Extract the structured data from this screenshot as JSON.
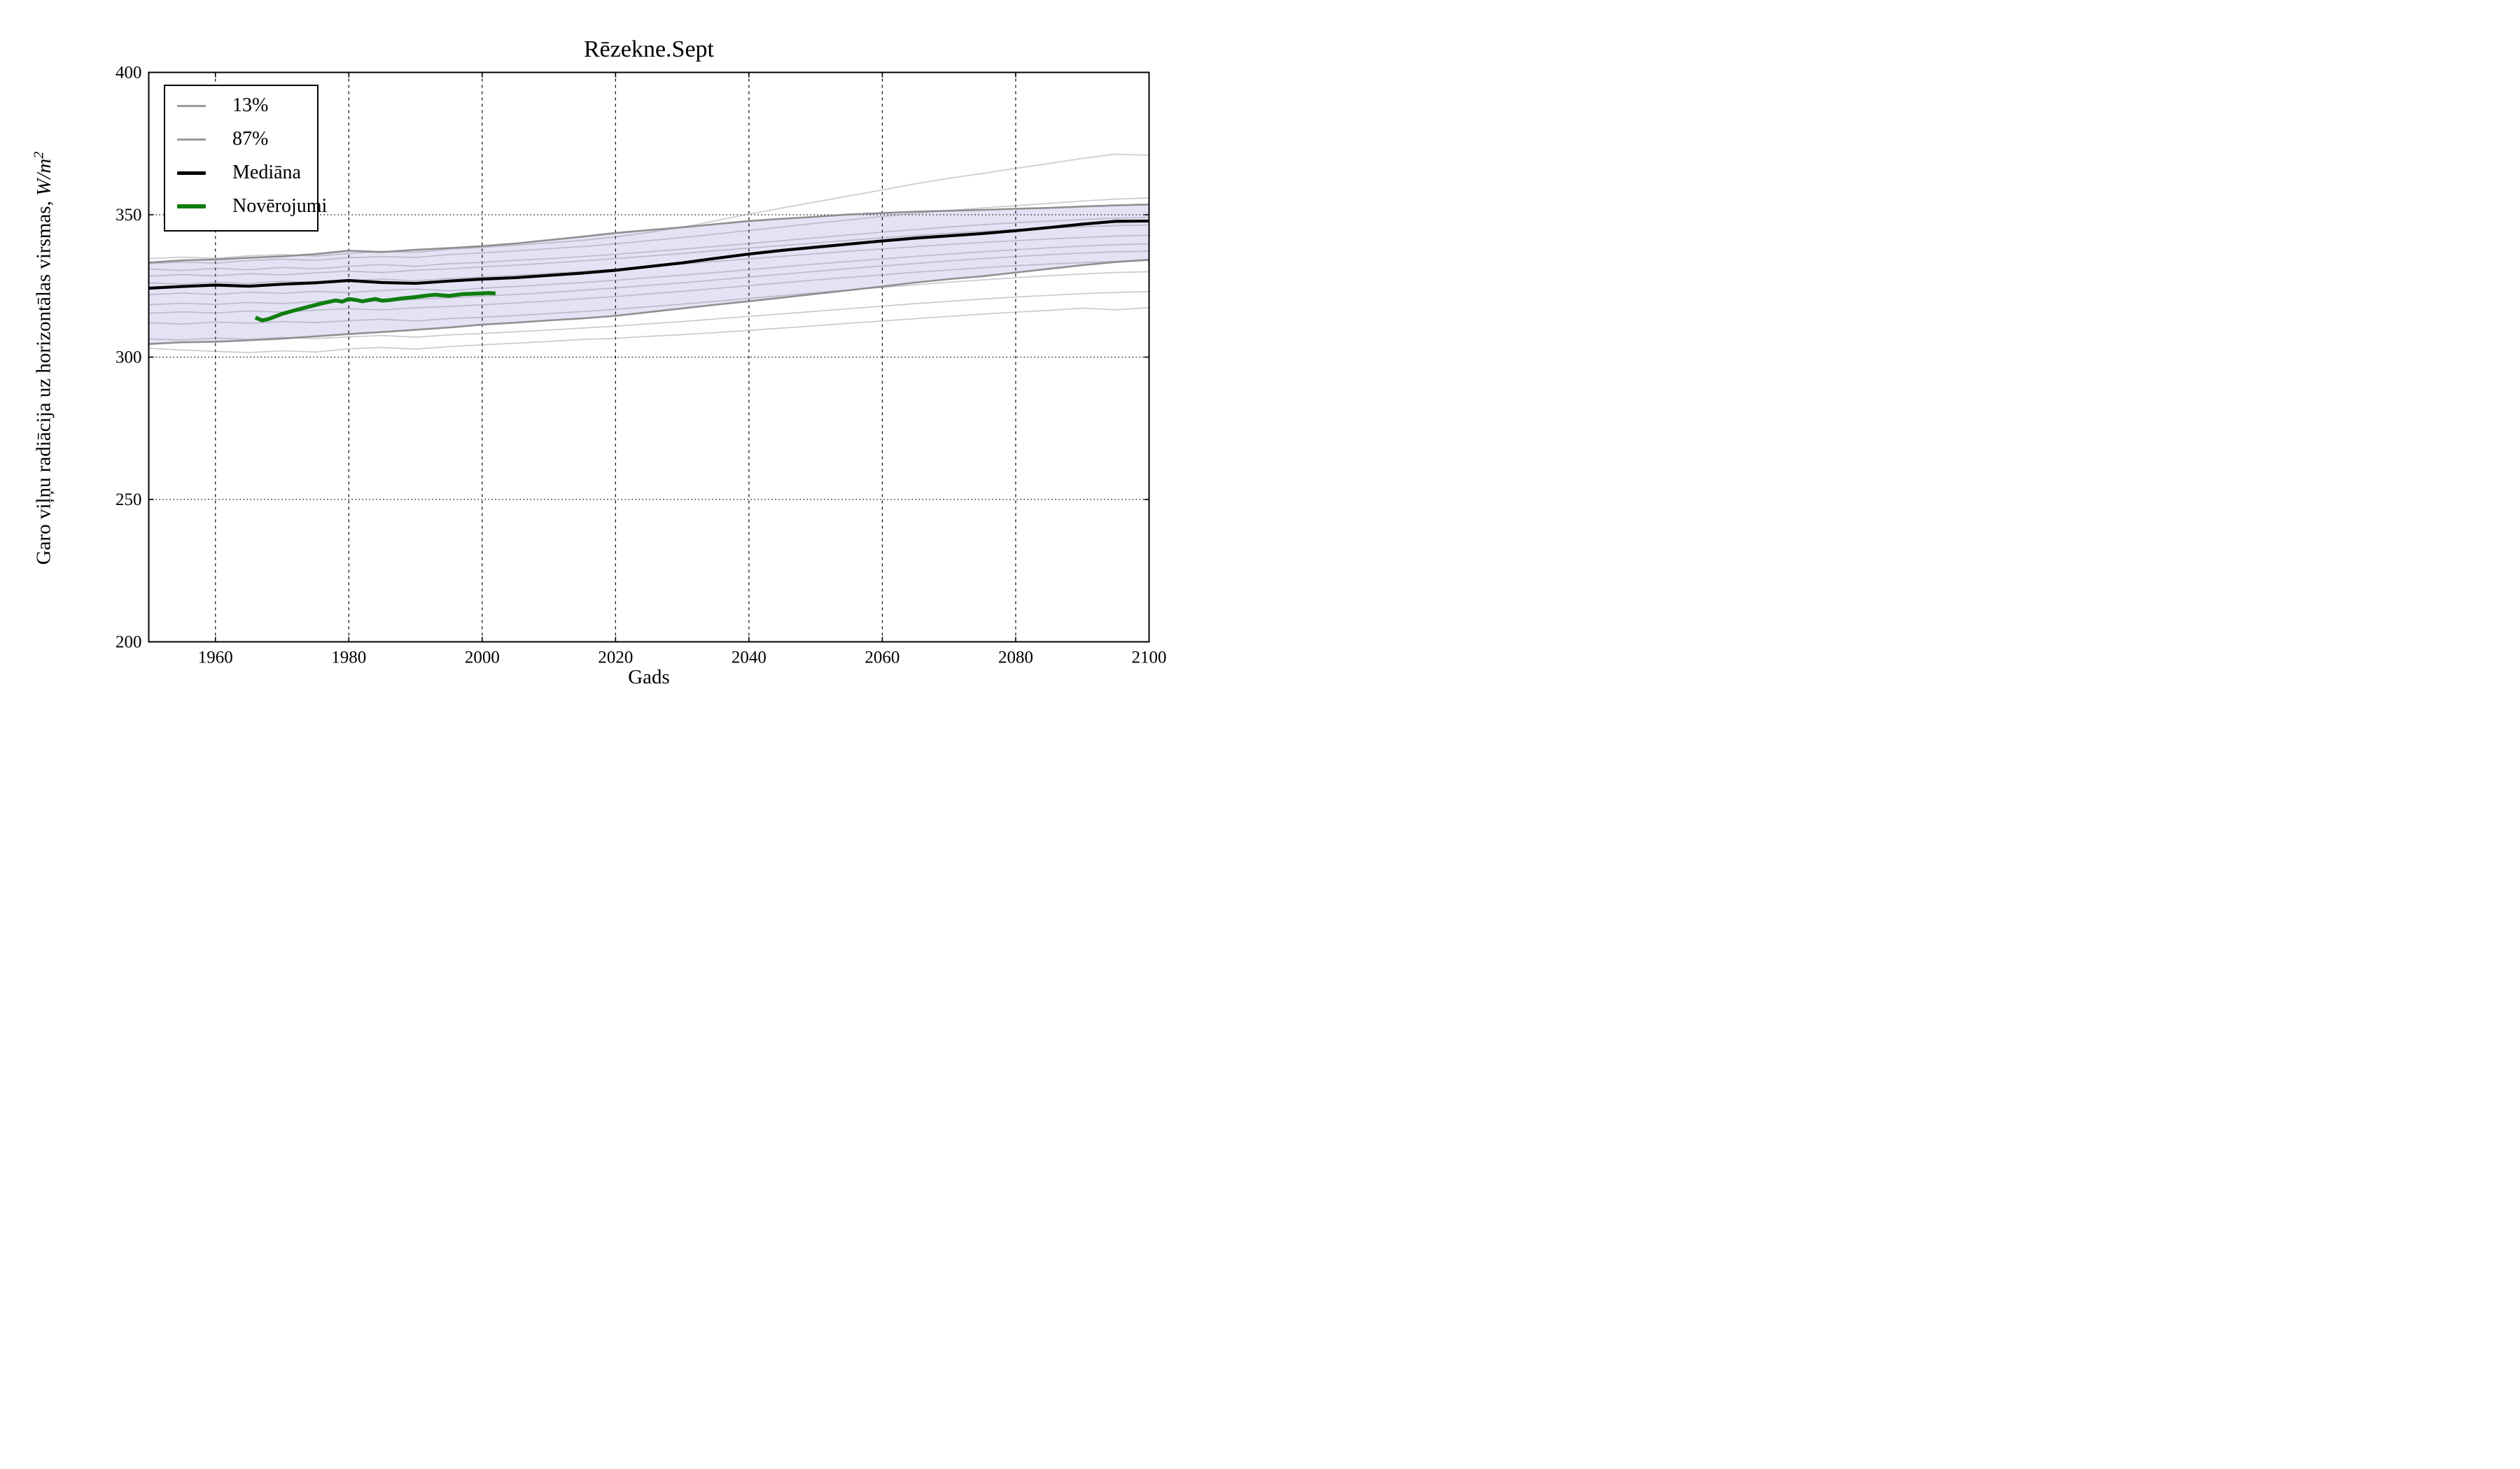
{
  "title": "Rēzekne.Sept",
  "axes": {
    "xlabel": "Gads",
    "ylabel_main": "Garo viļņu radiācija uz horizontālas virsmas, ",
    "ylabel_units": "W/m",
    "ylabel_exponent": "2",
    "xlim": [
      1950,
      2100
    ],
    "ylim": [
      200,
      400
    ],
    "xticks": [
      1960,
      1980,
      2000,
      2020,
      2040,
      2060,
      2080,
      2100
    ],
    "yticks": [
      400,
      350,
      300,
      250,
      200
    ],
    "xgrid": [
      1960,
      1980,
      2000,
      2020,
      2040,
      2060,
      2080
    ],
    "ygrid": [
      350,
      300,
      250
    ],
    "spine_color": "#000000",
    "grid_color": "#000000"
  },
  "legend": {
    "items": [
      {
        "label": "13%",
        "color": "#9a9a9a",
        "thickness": 3
      },
      {
        "label": "87%",
        "color": "#9a9a9a",
        "thickness": 3
      },
      {
        "label": "Mediāna",
        "color": "#000000",
        "thickness": 5
      },
      {
        "label": "Novērojumi",
        "color": "#0f7d0f",
        "thickness": 6
      }
    ]
  },
  "chart_data": {
    "type": "line",
    "title": "Rēzekne.Sept",
    "xlabel": "Gads",
    "ylabel": "Garo viļņu radiācija uz horizontālas virsmas, W/m²",
    "xlim": [
      1950,
      2100
    ],
    "ylim": [
      200,
      400
    ],
    "grid": true,
    "legend_position": "upper left",
    "x_years": [
      1950,
      1955,
      1960,
      1965,
      1970,
      1975,
      1980,
      1985,
      1990,
      1995,
      2000,
      2005,
      2010,
      2015,
      2020,
      2025,
      2030,
      2035,
      2040,
      2045,
      2050,
      2055,
      2060,
      2065,
      2070,
      2075,
      2080,
      2085,
      2090,
      2095,
      2100
    ],
    "band": {
      "lower_name": "13%",
      "upper_name": "87%",
      "fill_color": "#e3e3f5",
      "edge_color": "#8a8a8a",
      "p13": [
        304.6,
        305.2,
        305.4,
        305.9,
        306.5,
        307.3,
        308.1,
        308.8,
        309.6,
        310.4,
        311.4,
        312.1,
        312.9,
        313.6,
        314.5,
        315.8,
        317.1,
        318.4,
        319.6,
        320.9,
        322.2,
        323.5,
        324.8,
        326.2,
        327.4,
        328.4,
        329.7,
        331.0,
        332.3,
        333.4,
        334.2
      ],
      "p87": [
        333.2,
        334.0,
        334.3,
        334.9,
        335.4,
        336.2,
        337.4,
        336.9,
        337.7,
        338.3,
        339.0,
        339.9,
        341.1,
        342.3,
        343.6,
        344.6,
        345.6,
        346.7,
        347.8,
        348.6,
        349.3,
        350.1,
        350.6,
        351.1,
        351.4,
        351.7,
        352.1,
        352.4,
        352.9,
        353.3,
        353.6
      ]
    },
    "median": {
      "name": "Mediāna",
      "color": "#000000",
      "values": [
        324.2,
        324.8,
        325.3,
        324.9,
        325.6,
        326.1,
        326.9,
        326.2,
        325.9,
        326.7,
        327.4,
        327.9,
        328.7,
        329.5,
        330.5,
        331.8,
        333.1,
        334.7,
        336.2,
        337.5,
        338.6,
        339.7,
        340.8,
        341.8,
        342.6,
        343.4,
        344.4,
        345.5,
        346.7,
        347.7,
        347.8
      ]
    },
    "observations": {
      "name": "Novērojumi",
      "color": "#0f7d0f",
      "x": [
        1966,
        1967,
        1968,
        1970,
        1972,
        1974,
        1976,
        1978,
        1979,
        1980,
        1981,
        1982,
        1984,
        1985,
        1986,
        1988,
        1990,
        1992,
        1993,
        1995,
        1997,
        1999,
        2001,
        2002
      ],
      "values": [
        313.9,
        312.9,
        313.4,
        315.2,
        316.5,
        317.7,
        318.9,
        319.9,
        319.5,
        320.4,
        320.1,
        319.6,
        320.4,
        319.8,
        320.0,
        320.6,
        321.1,
        321.7,
        321.9,
        321.5,
        322.1,
        322.3,
        322.5,
        322.4
      ]
    },
    "ensemble": {
      "color": "rgba(138,138,154,0.45)",
      "lines": [
        [
          334.6,
          335.1,
          334.7,
          335.6,
          336.0,
          335.5,
          336.4,
          337.2,
          336.8,
          337.9,
          338.5,
          339.3,
          340.1,
          341.0,
          342.2,
          343.8,
          345.6,
          347.9,
          350.2,
          352.4,
          354.5,
          356.6,
          358.7,
          360.9,
          362.8,
          364.5,
          366.3,
          368.0,
          369.8,
          371.3,
          370.9
        ],
        [
          332.8,
          333.4,
          333.0,
          333.9,
          334.4,
          334.0,
          334.9,
          335.3,
          335.0,
          336.0,
          336.6,
          337.3,
          338.1,
          338.8,
          339.8,
          340.9,
          342.0,
          343.2,
          344.5,
          345.7,
          347.0,
          348.2,
          349.4,
          350.5,
          351.5,
          352.4,
          353.2,
          354.0,
          354.8,
          355.5,
          355.9
        ],
        [
          331.0,
          330.4,
          331.2,
          330.7,
          331.5,
          331.0,
          331.9,
          332.5,
          331.9,
          332.8,
          333.3,
          334.0,
          334.6,
          335.3,
          336.1,
          337.0,
          337.9,
          338.9,
          339.9,
          340.9,
          341.9,
          342.9,
          343.9,
          344.8,
          345.7,
          346.5,
          347.2,
          347.8,
          348.3,
          348.8,
          349.1
        ],
        [
          328.4,
          329.0,
          328.5,
          329.3,
          328.9,
          329.6,
          330.2,
          329.7,
          330.5,
          331.0,
          331.7,
          332.3,
          333.0,
          333.8,
          334.6,
          335.5,
          336.4,
          337.4,
          338.3,
          339.2,
          340.1,
          341.0,
          341.9,
          342.7,
          343.5,
          344.2,
          344.8,
          345.3,
          345.8,
          346.2,
          346.4
        ],
        [
          326.1,
          325.6,
          326.3,
          325.9,
          326.6,
          326.2,
          326.9,
          327.4,
          326.8,
          327.6,
          328.1,
          328.7,
          329.4,
          330.1,
          330.9,
          331.8,
          332.7,
          333.6,
          334.5,
          335.4,
          336.3,
          337.2,
          338.0,
          338.8,
          339.6,
          340.3,
          340.9,
          341.5,
          342.0,
          342.5,
          342.8
        ],
        [
          321.9,
          322.5,
          322.0,
          322.8,
          322.4,
          323.1,
          322.7,
          323.4,
          323.9,
          323.3,
          324.2,
          324.8,
          325.5,
          326.2,
          327.0,
          327.9,
          328.8,
          329.7,
          330.7,
          331.7,
          332.7,
          333.6,
          334.5,
          335.4,
          336.2,
          337.0,
          337.7,
          338.4,
          339.0,
          339.5,
          339.8
        ],
        [
          318.4,
          318.9,
          318.5,
          319.2,
          318.8,
          319.5,
          320.0,
          319.6,
          320.3,
          320.8,
          321.4,
          322.0,
          322.7,
          323.5,
          324.3,
          325.2,
          326.1,
          327.1,
          328.1,
          329.1,
          330.1,
          331.1,
          332.0,
          332.9,
          333.8,
          334.6,
          335.3,
          336.0,
          336.5,
          337.0,
          337.2
        ],
        [
          315.4,
          315.9,
          315.5,
          316.2,
          315.8,
          316.5,
          317.0,
          316.6,
          317.3,
          317.8,
          318.4,
          319.0,
          319.7,
          320.5,
          321.3,
          322.2,
          323.1,
          324.1,
          325.1,
          326.1,
          327.1,
          328.0,
          328.9,
          329.8,
          330.6,
          331.4,
          332.1,
          332.7,
          333.2,
          333.6,
          333.9
        ],
        [
          312.1,
          311.6,
          312.3,
          311.9,
          312.5,
          312.1,
          312.8,
          313.3,
          312.7,
          313.5,
          314.0,
          314.6,
          315.3,
          316.0,
          316.8,
          317.7,
          318.6,
          319.6,
          320.6,
          321.6,
          322.6,
          323.6,
          324.5,
          325.4,
          326.3,
          327.1,
          327.9,
          328.6,
          329.2,
          329.7,
          330.0
        ],
        [
          306.4,
          306.0,
          306.7,
          306.2,
          306.9,
          306.5,
          307.1,
          307.6,
          307.0,
          307.8,
          308.3,
          308.9,
          309.5,
          310.2,
          310.9,
          311.7,
          312.5,
          313.4,
          314.3,
          315.2,
          316.1,
          317.0,
          317.9,
          318.8,
          319.6,
          320.4,
          321.1,
          321.7,
          322.3,
          322.7,
          323.0
        ],
        [
          303.1,
          302.5,
          302.0,
          301.6,
          302.2,
          301.8,
          302.9,
          303.4,
          302.8,
          303.7,
          304.3,
          304.9,
          305.5,
          306.2,
          306.6,
          307.3,
          307.9,
          308.6,
          309.4,
          310.2,
          311.0,
          311.9,
          312.7,
          313.5,
          314.3,
          315.1,
          315.8,
          316.4,
          317.2,
          316.6,
          317.4
        ]
      ]
    }
  }
}
